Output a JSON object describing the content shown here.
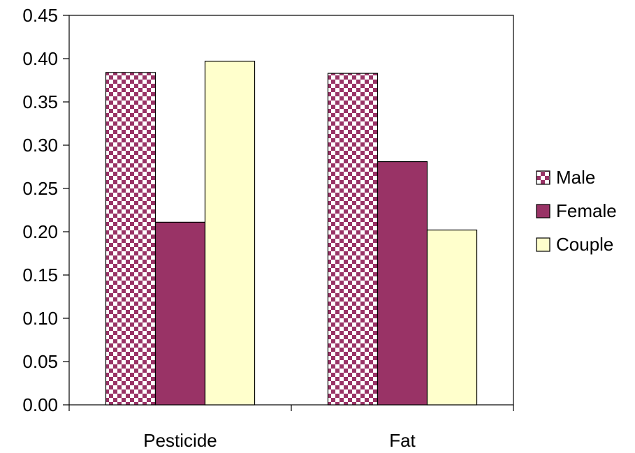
{
  "chart_data": {
    "type": "bar",
    "categories": [
      "Pesticide",
      "Fat"
    ],
    "series": [
      {
        "name": "Male",
        "values": [
          0.384,
          0.383
        ],
        "color": "#993366",
        "pattern": "checkerboard"
      },
      {
        "name": "Female",
        "values": [
          0.211,
          0.281
        ],
        "color": "#993366",
        "pattern": "solid"
      },
      {
        "name": "Couple",
        "values": [
          0.397,
          0.202
        ],
        "color": "#FFFFCC",
        "pattern": "solid"
      }
    ],
    "yticks": [
      "0.00",
      "0.05",
      "0.10",
      "0.15",
      "0.20",
      "0.25",
      "0.30",
      "0.35",
      "0.40",
      "0.45"
    ],
    "ylim": [
      0,
      0.45
    ],
    "grid": false,
    "legend_position": "right"
  }
}
